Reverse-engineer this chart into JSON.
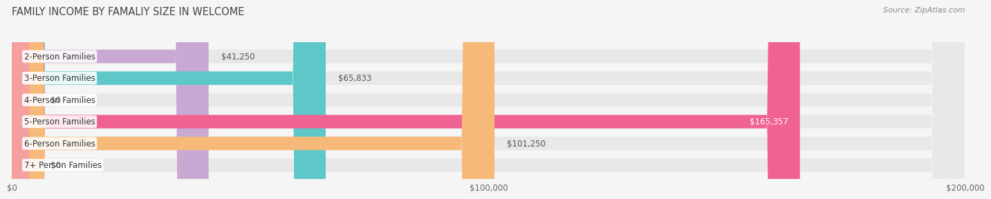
{
  "title": "FAMILY INCOME BY FAMALIY SIZE IN WELCOME",
  "source": "Source: ZipAtlas.com",
  "categories": [
    "2-Person Families",
    "3-Person Families",
    "4-Person Families",
    "5-Person Families",
    "6-Person Families",
    "7+ Person Families"
  ],
  "values": [
    41250,
    65833,
    0,
    165357,
    101250,
    0
  ],
  "bar_colors": [
    "#c9a8d4",
    "#5ec8c8",
    "#b3b8e8",
    "#f06292",
    "#f7b97a",
    "#f4a0a0"
  ],
  "value_labels": [
    "$41,250",
    "$65,833",
    "$0",
    "$165,357",
    "$101,250",
    "$0"
  ],
  "xlim": [
    0,
    200000
  ],
  "xticks": [
    0,
    100000,
    200000
  ],
  "xtick_labels": [
    "$0",
    "$100,000",
    "$200,000"
  ],
  "bar_height": 0.62,
  "background_color": "#f5f5f5",
  "bar_bg_color": "#e8e8e8",
  "title_fontsize": 10.5,
  "label_fontsize": 8.5,
  "value_fontsize": 8.5,
  "source_fontsize": 8
}
